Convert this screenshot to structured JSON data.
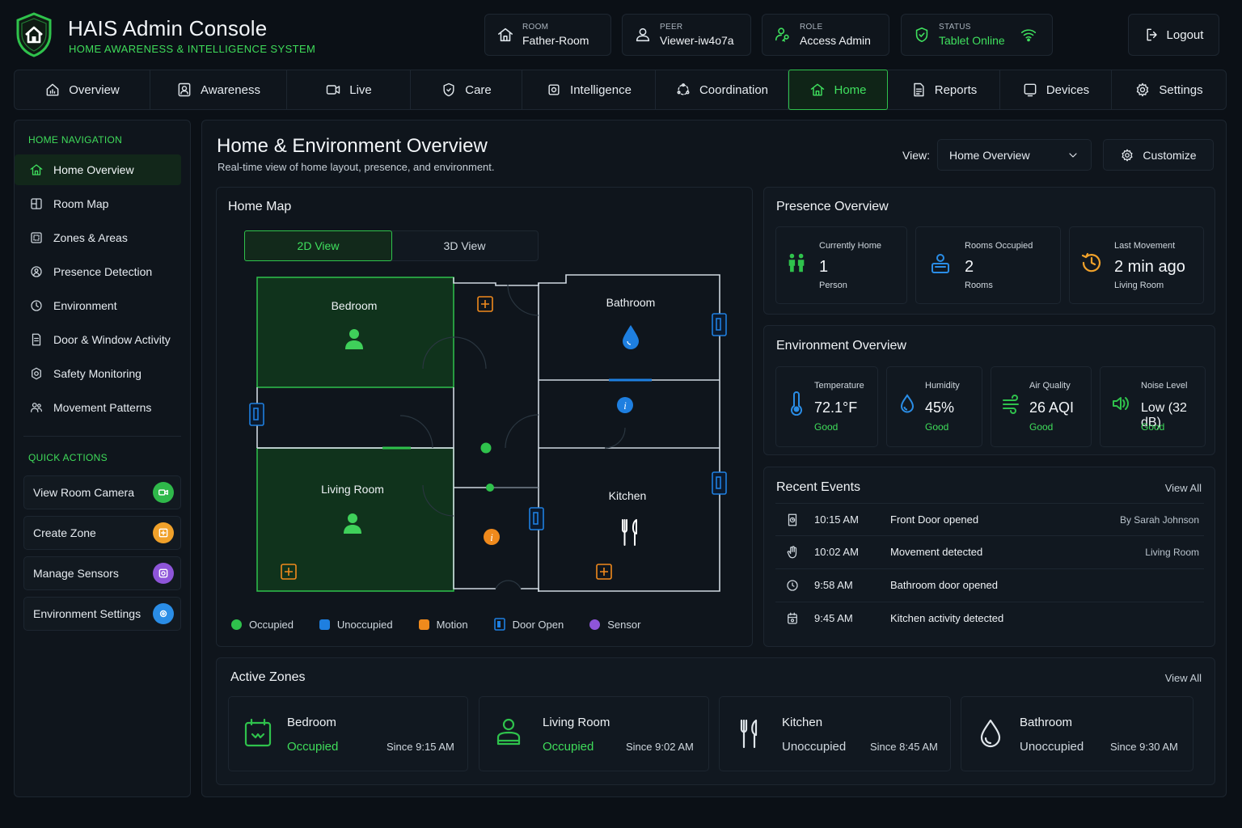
{
  "header": {
    "title": "HAIS Admin Console",
    "subtitle": "HOME AWARENESS & INTELLIGENCE SYSTEM",
    "room": {
      "label": "ROOM",
      "value": "Father-Room"
    },
    "peer": {
      "label": "PEER",
      "value": "Viewer-iw4o7a"
    },
    "role": {
      "label": "ROLE",
      "value": "Access Admin"
    },
    "status": {
      "label": "STATUS",
      "value": "Tablet Online"
    },
    "logout": "Logout"
  },
  "nav": {
    "tabs": [
      {
        "label": "Overview",
        "icon": "chart-icon"
      },
      {
        "label": "Awareness",
        "icon": "person-badge-icon"
      },
      {
        "label": "Live",
        "icon": "camera-icon"
      },
      {
        "label": "Care",
        "icon": "shield-icon"
      },
      {
        "label": "Intelligence",
        "icon": "chip-icon"
      },
      {
        "label": "Coordination",
        "icon": "network-icon"
      },
      {
        "label": "Home",
        "icon": "home-icon"
      },
      {
        "label": "Reports",
        "icon": "report-icon"
      },
      {
        "label": "Devices",
        "icon": "tablet-icon"
      },
      {
        "label": "Settings",
        "icon": "gear-icon"
      }
    ],
    "active": "Home"
  },
  "sidebar": {
    "section_nav": "HOME NAVIGATION",
    "items": [
      {
        "label": "Home Overview",
        "icon": "home-icon"
      },
      {
        "label": "Room Map",
        "icon": "map-icon"
      },
      {
        "label": "Zones & Areas",
        "icon": "zones-icon"
      },
      {
        "label": "Presence Detection",
        "icon": "radar-icon"
      },
      {
        "label": "Environment",
        "icon": "clock-icon"
      },
      {
        "label": "Door & Window Activity",
        "icon": "door-icon"
      },
      {
        "label": "Safety Monitoring",
        "icon": "safety-icon"
      },
      {
        "label": "Movement Patterns",
        "icon": "people-icon"
      }
    ],
    "section_actions": "QUICK ACTIONS",
    "actions": [
      {
        "label": "View Room Camera",
        "color": "#2fb84a"
      },
      {
        "label": "Create Zone",
        "color": "#f0a12a"
      },
      {
        "label": "Manage Sensors",
        "color": "#8e55d9"
      },
      {
        "label": "Environment Settings",
        "color": "#2a8de6"
      }
    ]
  },
  "main": {
    "title": "Home & Environment Overview",
    "subtitle": "Real-time view of home layout, presence, and environment.",
    "view_label": "View:",
    "view_value": "Home Overview",
    "customize": "Customize"
  },
  "home_map": {
    "title": "Home Map",
    "view_2d": "2D View",
    "view_3d": "3D View",
    "rooms": {
      "bedroom": "Bedroom",
      "bathroom": "Bathroom",
      "living": "Living Room",
      "kitchen": "Kitchen"
    },
    "legend": [
      {
        "label": "Occupied",
        "color": "#2fc24c"
      },
      {
        "label": "Unoccupied",
        "color": "#1e7fe0"
      },
      {
        "label": "Motion",
        "color": "#f08a1c"
      },
      {
        "label": "Door Open",
        "color": "#1e7fe0"
      },
      {
        "label": "Sensor",
        "color": "#8e55d9"
      }
    ]
  },
  "presence": {
    "title": "Presence Overview",
    "cards": [
      {
        "label": "Currently Home",
        "value": "1",
        "unit": "Person"
      },
      {
        "label": "Rooms Occupied",
        "value": "2",
        "unit": "Rooms"
      },
      {
        "label": "Last Movement",
        "value": "2 min ago",
        "unit": "Living Room"
      }
    ]
  },
  "environment": {
    "title": "Environment Overview",
    "cards": [
      {
        "label": "Temperature",
        "value": "72.1°F",
        "status": "Good"
      },
      {
        "label": "Humidity",
        "value": "45%",
        "status": "Good"
      },
      {
        "label": "Air Quality",
        "value": "26 AQI",
        "status": "Good"
      },
      {
        "label": "Noise Level",
        "value": "Low (32 dB)",
        "status": "Good"
      }
    ]
  },
  "events": {
    "title": "Recent Events",
    "view_all": "View All",
    "items": [
      {
        "time": "10:15 AM",
        "desc": "Front Door opened",
        "who": "By Sarah Johnson"
      },
      {
        "time": "10:02 AM",
        "desc": "Movement detected",
        "who": "Living Room"
      },
      {
        "time": "9:58 AM",
        "desc": "Bathroom door opened",
        "who": ""
      },
      {
        "time": "9:45 AM",
        "desc": "Kitchen activity detected",
        "who": ""
      }
    ]
  },
  "zones": {
    "title": "Active Zones",
    "view_all": "View All",
    "items": [
      {
        "name": "Bedroom",
        "status": "Occupied",
        "since": "Since 9:15 AM"
      },
      {
        "name": "Living Room",
        "status": "Occupied",
        "since": "Since 9:02 AM"
      },
      {
        "name": "Kitchen",
        "status": "Unoccupied",
        "since": "Since 8:45 AM"
      },
      {
        "name": "Bathroom",
        "status": "Unoccupied",
        "since": "Since 9:30 AM"
      }
    ]
  }
}
